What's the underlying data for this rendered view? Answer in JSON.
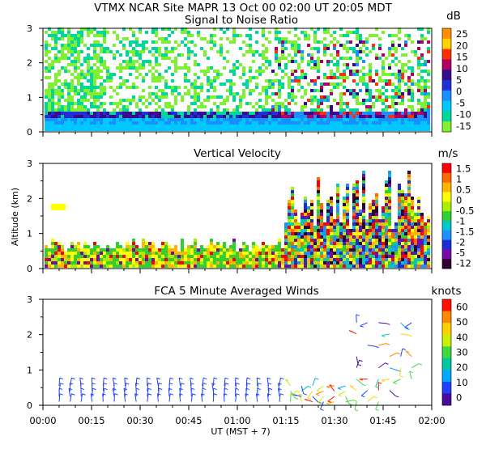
{
  "header": {
    "site": "VTMX   NCAR Site   MAPR 13 Oct 00   02:00 UT   20:05   MDT"
  },
  "xaxis": {
    "tick_labels": [
      "00:00",
      "00:15",
      "00:30",
      "00:45",
      "01:00",
      "01:15",
      "01:30",
      "01:45",
      "02:00"
    ],
    "label": "UT   (MST + 7)"
  },
  "yaxis_label": "Altitude (km)",
  "chart_data": [
    {
      "type": "heatmap",
      "title": "Signal to Noise Ratio",
      "ylim": [
        0,
        3
      ],
      "y_ticks": [
        "0",
        "1",
        "2",
        "3"
      ],
      "colorbar": {
        "unit": "dB",
        "labels": [
          "25",
          "20",
          "15",
          "10",
          "5",
          "0",
          "-5",
          "-10",
          "-15"
        ],
        "colors": [
          "#ff8f00",
          "#ffd200",
          "#ff3000",
          "#b00060",
          "#3a0a8c",
          "#2030d8",
          "#1890ff",
          "#00c8ff",
          "#00d89a",
          "#80f030"
        ]
      }
    },
    {
      "type": "heatmap",
      "title": "Vertical Velocity",
      "ylim": [
        0,
        3
      ],
      "y_ticks": [
        "0",
        "1",
        "2",
        "3"
      ],
      "colorbar": {
        "unit": "m/s",
        "labels": [
          "1.5",
          "1",
          "0.5",
          "0",
          "-0.5",
          "-1",
          "-1.5",
          "-2",
          "-5",
          "-12"
        ],
        "colors": [
          "#ff0000",
          "#ff6a00",
          "#ffb400",
          "#ffff00",
          "#a8f000",
          "#30d030",
          "#00c8c8",
          "#2090ff",
          "#1a2bd8",
          "#7a0aa8",
          "#300030"
        ]
      }
    },
    {
      "type": "scatter",
      "title": "FCA 5 Minute Averaged Winds",
      "ylim": [
        0,
        3
      ],
      "y_ticks": [
        "0",
        "1",
        "2",
        "3"
      ],
      "colorbar": {
        "unit": "knots",
        "labels": [
          "60",
          "50",
          "40",
          "30",
          "20",
          "10",
          "0"
        ],
        "colors": [
          "#ff1000",
          "#ff8800",
          "#ffd000",
          "#c8f000",
          "#40d840",
          "#00c8a0",
          "#00a8ff",
          "#2040ff",
          "#4a0a9a"
        ]
      }
    }
  ]
}
